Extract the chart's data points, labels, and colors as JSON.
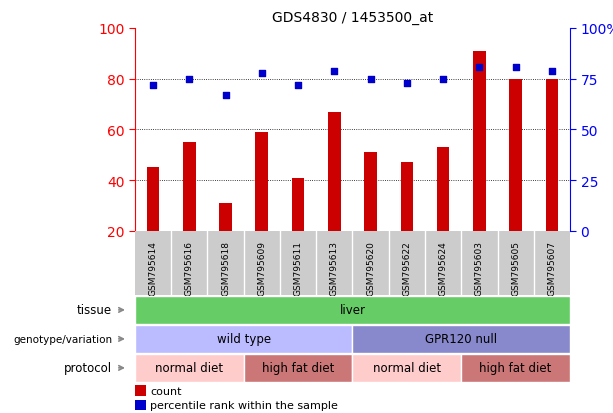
{
  "title": "GDS4830 / 1453500_at",
  "samples": [
    "GSM795614",
    "GSM795616",
    "GSM795618",
    "GSM795609",
    "GSM795611",
    "GSM795613",
    "GSM795620",
    "GSM795622",
    "GSM795624",
    "GSM795603",
    "GSM795605",
    "GSM795607"
  ],
  "bar_values": [
    45,
    55,
    31,
    59,
    41,
    67,
    51,
    47,
    53,
    91,
    80,
    80
  ],
  "dot_values": [
    72,
    75,
    67,
    78,
    72,
    79,
    75,
    73,
    75,
    81,
    81,
    79
  ],
  "bar_color": "#cc0000",
  "dot_color": "#0000cc",
  "ylim_left": [
    20,
    100
  ],
  "ylim_right": [
    0,
    100
  ],
  "grid_values": [
    40,
    60,
    80
  ],
  "legend_items": [
    "count",
    "percentile rank within the sample"
  ],
  "right_yticks": [
    0,
    25,
    50,
    75,
    100
  ],
  "right_yticklabels": [
    "0",
    "25",
    "50",
    "75",
    "100%"
  ],
  "left_yticks": [
    20,
    40,
    60,
    80,
    100
  ],
  "tissue_color": "#66cc66",
  "geno_colors": [
    "#bbbbff",
    "#8888cc"
  ],
  "proto_colors": [
    "#ffcccc",
    "#cc7777",
    "#ffcccc",
    "#cc7777"
  ],
  "proto_spans": [
    3,
    3,
    3,
    3
  ],
  "geno_spans": [
    6,
    6
  ],
  "proto_labels": [
    "normal diet",
    "high fat diet",
    "normal diet",
    "high fat diet"
  ],
  "geno_labels": [
    "wild type",
    "GPR120 null"
  ],
  "background_color": "#ffffff",
  "xtick_bg": "#cccccc",
  "arrow_color": "#888888"
}
